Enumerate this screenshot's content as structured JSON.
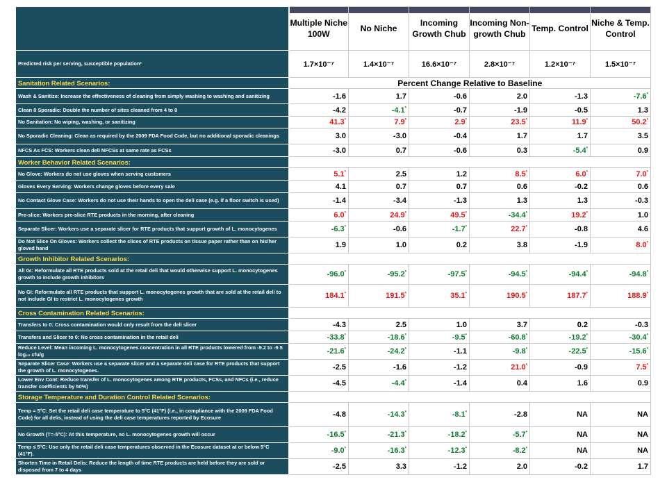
{
  "headers": [
    "Multiple Niche 100W",
    "No Niche",
    "Incoming Growth Chub",
    "Incoming Non-growth Chub",
    "Temp. Control",
    "Niche & Temp. Control"
  ],
  "risk": {
    "label": "Predicted risk per serving, susceptible population²",
    "values": [
      "1.7×10⁻⁷",
      "1.4×10⁻⁷",
      "16.6×10⁻⁷",
      "2.8×10⁻⁷",
      "1.2×10⁻⁷",
      "1.5×10⁻⁷"
    ]
  },
  "percent_label": "Percent Change Relative to Baseline",
  "sections": [
    {
      "title": "Sanitation Related Scenarios:",
      "rows": [
        {
          "label": "Wash & Sanitize: Increase the effectiveness of cleaning from simply washing to washing and sanitizing",
          "values": [
            "-1.6",
            "1.7",
            "-0.6",
            "2.0",
            "-1.3",
            "-7.6*"
          ]
        },
        {
          "label": "Clean 8 Sporadic: Double the number of sites cleaned from 4 to 8",
          "values": [
            "-4.2",
            "-4.1*",
            "-0.7",
            "-1.9",
            "-0.5",
            "1.3"
          ]
        },
        {
          "label": "No Sanitation: No wiping, washing, or sanitizing",
          "values": [
            "41.3*",
            "7.9*",
            "2.9*",
            "23.5*",
            "11.9*",
            "50.2*"
          ]
        },
        {
          "label": "No Sporadic Cleaning: Clean as required by the 2009 FDA Food Code, but no additional sporadic cleanings",
          "values": [
            "3.0",
            "-3.0",
            "-0.4",
            "1.7",
            "1.7",
            "3.5"
          ]
        },
        {
          "label": "NFCS As FCS: Workers clean deli NFCSs at same rate as FCSs",
          "values": [
            "-3.0",
            "0.7",
            "-0.6",
            "0.3",
            "-5.4*",
            "0.9"
          ]
        }
      ]
    },
    {
      "title": "Worker Behavior Related Scenarios:",
      "rows": [
        {
          "label": "No Glove: Workers do not use gloves when serving customers",
          "values": [
            "5.1*",
            "2.5",
            "1.2",
            "8.5*",
            "6.0*",
            "7.0*"
          ]
        },
        {
          "label": "Gloves Every Serving: Workers change gloves before every sale",
          "values": [
            "4.1",
            "0.7",
            "0.7",
            "0.6",
            "-0.2",
            "0.6"
          ]
        },
        {
          "label": "No Contact Glove Case: Workers do not use their hands to open the deli case (e.g. if a floor switch is used)",
          "values": [
            "-1.4",
            "-3.4",
            "-1.3",
            "1.3",
            "1.3",
            "-0.3"
          ]
        },
        {
          "label": "Pre-slice: Workers pre-slice RTE products in the morning, after cleaning",
          "values": [
            "6.0*",
            "24.9*",
            "49.5*",
            "-34.4*",
            "19.2*",
            "1.0"
          ]
        },
        {
          "label": "Separate Slicer: Workers use a separate slicer for RTE products that support growth of L. monocytogenes",
          "values": [
            "-6.3*",
            "-0.6",
            "-1.7*",
            "22.7*",
            "-0.8",
            "4.6"
          ]
        },
        {
          "label": "Do Not Slice On Gloves: Workers collect the slices of RTE products on tissue paper rather than on his/her gloved hand",
          "values": [
            "1.9",
            "1.0",
            "0.2",
            "3.8",
            "-1.9",
            "8.0*"
          ]
        }
      ]
    },
    {
      "title": "Growth Inhibitor Related Scenarios:",
      "rows": [
        {
          "label": "All GI: Reformulate all RTE products sold at the retail deli that would otherwise support L. monocytogenes growth to include growth inhibitors",
          "values": [
            "-96.0*",
            "-95.2*",
            "-97.5*",
            "-94.5*",
            "-94.4*",
            "-94.8*"
          ]
        },
        {
          "label": "No GI: Reformulate all RTE products that support L. monocytogenes growth that are sold at the retail deli to not include GI to restrict L. monocytogenes growth",
          "values": [
            "184.1*",
            "191.5*",
            "35.1*",
            "190.5*",
            "187.7*",
            "188.9*"
          ]
        }
      ]
    },
    {
      "title": "Cross Contamination Related Scenarios:",
      "rows": [
        {
          "label": "Transfers to 0: Cross contamination would only result from the deli slicer",
          "values": [
            "-4.3",
            "2.5",
            "1.0",
            "3.7",
            "0.2",
            "-0.3"
          ]
        },
        {
          "label": "Transfers and Slicer to 0: No cross contamination in the retail deli",
          "values": [
            "-33.8*",
            "-18.6*",
            "-9.5*",
            "-60.8*",
            "-19.2*",
            "-30.4*"
          ]
        },
        {
          "label": "Reduce Level: Mean incoming L. monocytogenes concentration in all RTE products lowered from -9.2 to -9.5 log₁₀ cfu/g",
          "values": [
            "-21.6*",
            "-24.2*",
            "-1.1",
            "-9.8*",
            "-22.5*",
            "-15.6*"
          ]
        },
        {
          "label": "Separate Slicer Case: Workers use a separate slicer and a separate deli case for RTE products that support the growth of L. monocytogenes.",
          "values": [
            "-2.5",
            "-1.6",
            "-1.2",
            "21.0*",
            "-0.9",
            "7.5*"
          ]
        },
        {
          "label": "Lower Env Cont: Reduce transfer of L. monocytogenes among RTE products, FCSs, and NFCs (i.e., reduce transfer coefficients by 50%)",
          "values": [
            "-4.5",
            "-4.4*",
            "-1.4",
            "0.4",
            "1.6",
            "0.9"
          ]
        }
      ]
    },
    {
      "title": "Storage Temperature and Duration Control Related Scenarios:",
      "rows": [
        {
          "label": "Temp = 5°C: Set the retail deli case temperature to 5°C (41°F) (i.e., in compliance with the 2009 FDA Food Code) for all delis, instead of using the deli case temperatures reported by Ecosure",
          "values": [
            "-4.8",
            "-14.3*",
            "-8.1*",
            "-2.8",
            "NA",
            "NA"
          ]
        },
        {
          "label": "No Growth (T=-5°C): At this temperature, no L. monocytogenes growth will occur",
          "values": [
            "-16.5*",
            "-21.3*",
            "-18.2*",
            "-5.7*",
            "NA",
            "NA"
          ]
        },
        {
          "label": "Temp ≤ 5°C: Use only the retail deli case temperatures observed in the Ecosure dataset at or below 5°C (41°F).",
          "values": [
            "-9.0*",
            "-16.3*",
            "-12.3*",
            "-8.2*",
            "NA",
            "NA"
          ]
        },
        {
          "label": "Shorten Time in Retail Delis: Reduce the length of time RTE products are held before they are sold or disposed from 7 to 4 days",
          "values": [
            "-2.5",
            "3.3",
            "-1.2",
            "2.0",
            "-0.2",
            "1.7"
          ]
        }
      ]
    }
  ],
  "colors": {
    "label_bg": "#1c4d5e",
    "section_title": "#ffd84a",
    "increase": "#e01414",
    "decrease": "#0e7a2e"
  }
}
